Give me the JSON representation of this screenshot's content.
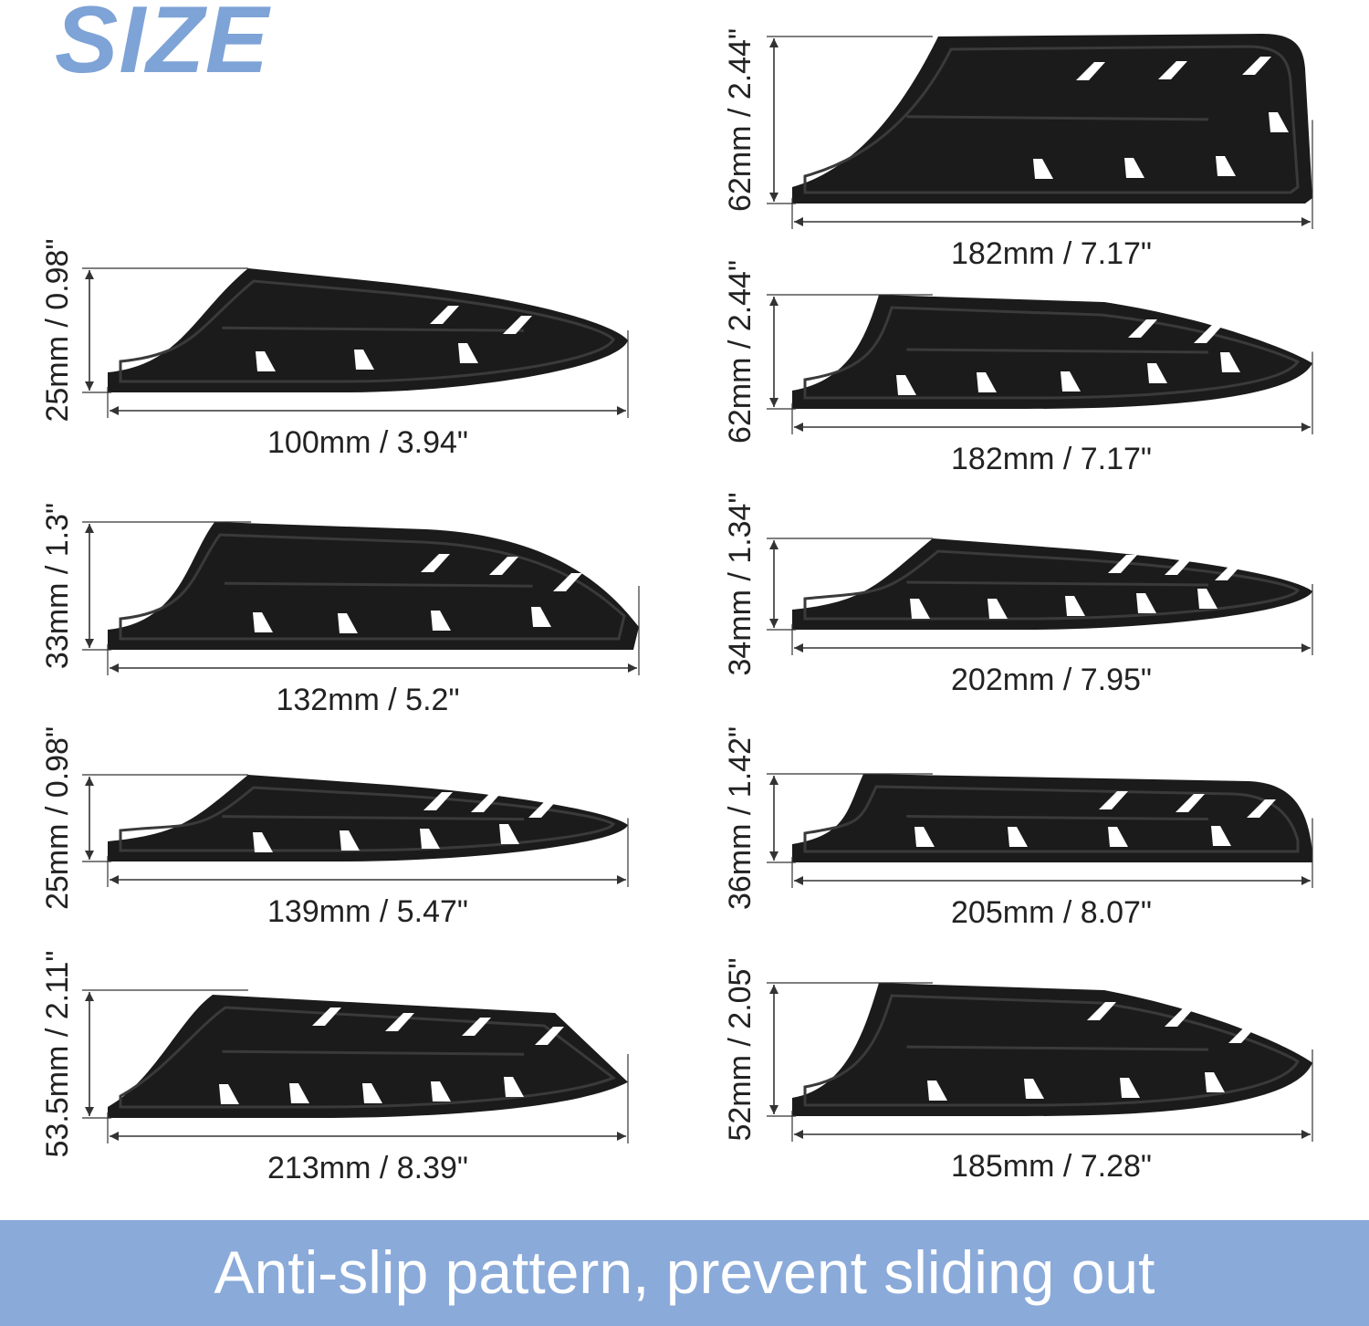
{
  "title": "SIZE",
  "banner": {
    "text": "Anti-slip pattern, prevent sliding out"
  },
  "colors": {
    "title": "#7ea3d6",
    "banner": "#8aaad9",
    "sheath": "#1b1b1b",
    "banner_text": "#ffffff"
  },
  "sheaths": [
    {
      "length": "100mm / 3.94\"",
      "height": "25mm / 0.98\""
    },
    {
      "length": "132mm / 5.2\"",
      "height": "33mm / 1.3\""
    },
    {
      "length": "139mm / 5.47\"",
      "height": "25mm / 0.98\""
    },
    {
      "length": "213mm / 8.39\"",
      "height": "53.5mm / 2.11\""
    },
    {
      "length": "182mm / 7.17\"",
      "height": "62mm / 2.44\""
    },
    {
      "length": "182mm / 7.17\"",
      "height": "62mm / 2.44\""
    },
    {
      "length": "202mm / 7.95\"",
      "height": "34mm / 1.34\""
    },
    {
      "length": "205mm / 8.07\"",
      "height": "36mm / 1.42\""
    },
    {
      "length": "185mm / 7.28\"",
      "height": "52mm / 2.05\""
    }
  ]
}
